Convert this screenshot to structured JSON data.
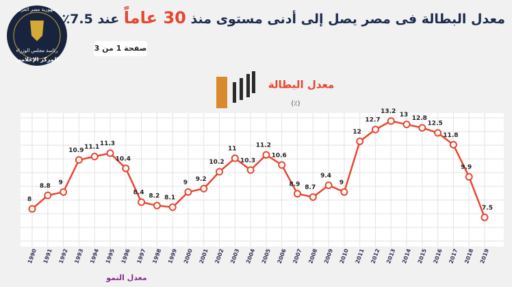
{
  "header": {
    "title_start": "معدل البطالة فى مصر يصل إلى أدنى مستوى منذ",
    "title_highlight": "30 عاماً",
    "title_end": "عند 7.5٪",
    "page": "صفحة 1 من 3",
    "logo": [
      "جمهورية مصر العربية",
      "رئاسة مجلس الوزراء",
      "المركز الإعلامي"
    ]
  },
  "chart_data": {
    "type": "line",
    "title": "معدل البطالة",
    "unit": "(٪)",
    "categories": [
      "1990",
      "1991",
      "1992",
      "1993",
      "1994",
      "1995",
      "1996",
      "1997",
      "1998",
      "1999",
      "2000",
      "2001",
      "2002",
      "2003",
      "2004",
      "2005",
      "2006",
      "2007",
      "2008",
      "2009",
      "2010",
      "2011",
      "2012",
      "2013",
      "2014",
      "2015",
      "2016",
      "2017",
      "2018",
      "2019"
    ],
    "values": [
      8,
      8.8,
      9,
      10.9,
      11.1,
      11.3,
      10.4,
      8.4,
      8.2,
      8.1,
      9,
      9.2,
      10.2,
      11,
      10.3,
      11.2,
      10.6,
      8.9,
      8.7,
      9.4,
      9,
      12,
      12.7,
      13.2,
      13,
      12.8,
      12.5,
      11.8,
      9.9,
      7.5
    ],
    "color": "#e8452f",
    "ylim": [
      6.5,
      14
    ],
    "grid": true
  },
  "footer": {
    "label": "معدل النمو"
  }
}
